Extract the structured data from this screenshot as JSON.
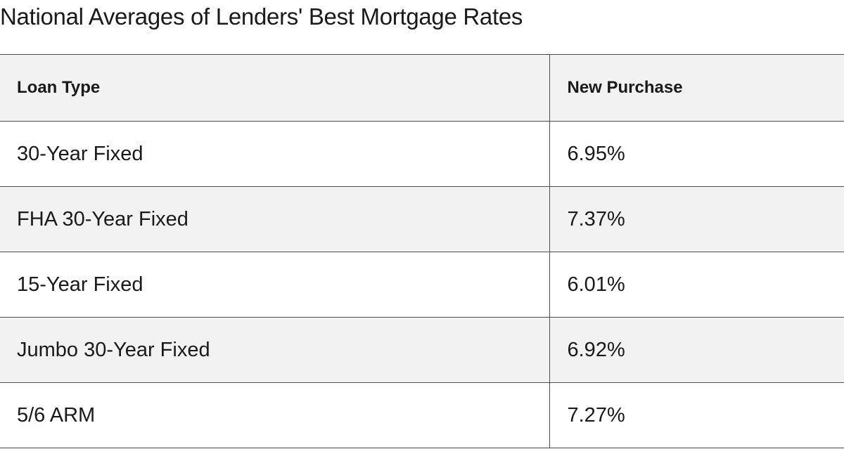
{
  "title": "National Averages of Lenders' Best Mortgage Rates",
  "table": {
    "headers": [
      "Loan Type",
      "New Purchase"
    ],
    "rows": [
      {
        "loan_type": "30-Year Fixed",
        "rate": "6.95%"
      },
      {
        "loan_type": "FHA 30-Year Fixed",
        "rate": "7.37%"
      },
      {
        "loan_type": "15-Year Fixed",
        "rate": "6.01%"
      },
      {
        "loan_type": "Jumbo 30-Year Fixed",
        "rate": "6.92%"
      },
      {
        "loan_type": "5/6 ARM",
        "rate": "7.27%"
      }
    ]
  }
}
